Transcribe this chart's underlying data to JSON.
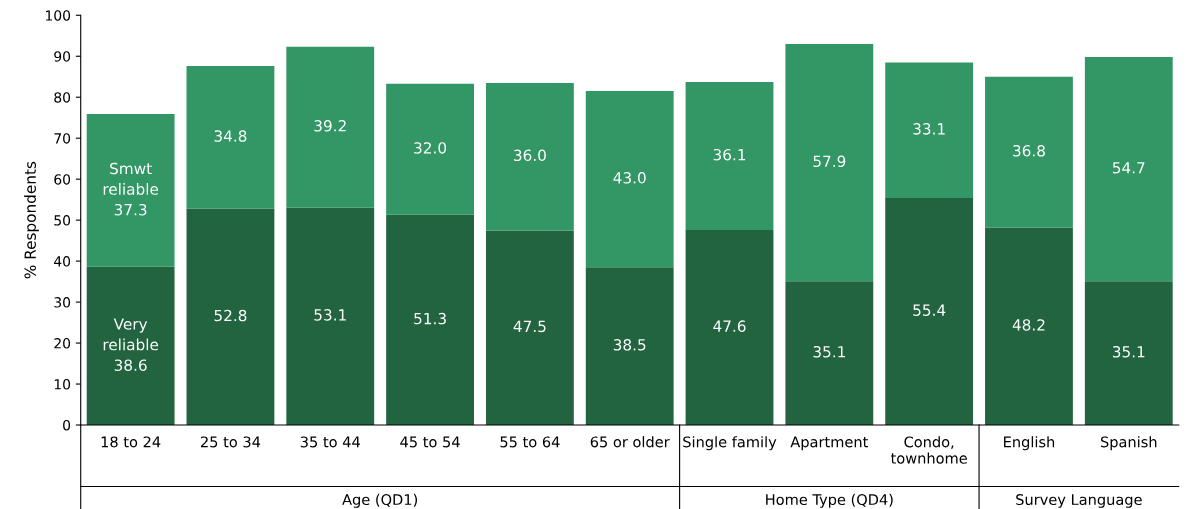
{
  "chart_data": {
    "type": "bar",
    "stacked": true,
    "ylabel": "% Respondents",
    "categories": [
      "18 to 24",
      "25 to 34",
      "35 to 44",
      "45 to 54",
      "55 to 64",
      "65 or older",
      "Single family",
      "Apartment",
      "Condo,\ntownhome",
      "English",
      "Spanish"
    ],
    "series": [
      {
        "name": "Very\nreliable",
        "color": "#22643f",
        "values": [
          38.6,
          52.8,
          53.1,
          51.3,
          47.5,
          38.5,
          47.6,
          35.1,
          55.4,
          48.2,
          35.1
        ],
        "value_labels": [
          "38.6",
          "52.8",
          "53.1",
          "51.3",
          "47.5",
          "38.5",
          "47.6",
          "35.1",
          "55.4",
          "48.2",
          "35.1"
        ]
      },
      {
        "name": "Smwt\nreliable",
        "color": "#339665",
        "values": [
          37.3,
          34.8,
          39.2,
          32.0,
          36.0,
          43.0,
          36.1,
          57.9,
          33.1,
          36.8,
          54.7
        ],
        "value_labels": [
          "37.3",
          "34.8",
          "39.2",
          "32.0",
          "36.0",
          "43.0",
          "36.1",
          "57.9",
          "33.1",
          "36.8",
          "54.7"
        ]
      }
    ],
    "ylim": [
      0,
      100
    ],
    "yticks": [
      0,
      10,
      20,
      30,
      40,
      50,
      60,
      70,
      80,
      90,
      100
    ],
    "grid": false,
    "legend": false,
    "annotations": [
      "Age (QD1)",
      "Home Type (QD4)",
      "Survey Language"
    ]
  }
}
